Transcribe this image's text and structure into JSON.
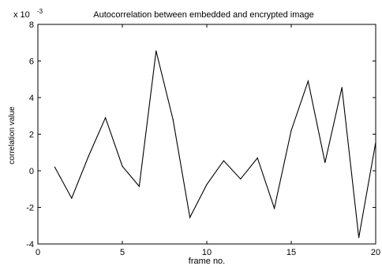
{
  "chart_data": {
    "type": "line",
    "title": "Autocorrelation between embedded and encrypted image",
    "xlabel": "frame no.",
    "ylabel": "correlation value",
    "y_multiplier": "x 10",
    "y_exponent": "-3",
    "xlim": [
      0,
      20
    ],
    "ylim": [
      -4,
      8
    ],
    "xticks": [
      0,
      5,
      10,
      15,
      20
    ],
    "yticks": [
      -4,
      -2,
      0,
      2,
      4,
      6,
      8
    ],
    "grid": false,
    "line_color": "#000000",
    "series": [
      {
        "x": [
          1,
          2,
          3,
          4,
          5,
          6,
          7,
          8,
          9,
          10,
          11,
          12,
          13,
          14,
          15,
          16,
          17,
          18,
          19,
          20
        ],
        "values": [
          0.2,
          -1.5,
          0.8,
          2.9,
          0.25,
          -0.85,
          6.55,
          2.8,
          -2.55,
          -0.75,
          0.55,
          -0.45,
          0.7,
          -2.05,
          2.2,
          4.9,
          0.45,
          4.55,
          -3.65,
          1.55
        ]
      }
    ]
  }
}
